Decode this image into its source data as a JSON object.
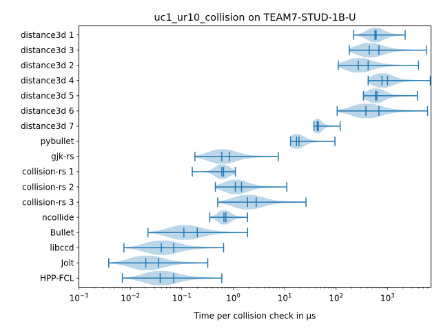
{
  "chart_data": {
    "type": "violin",
    "title": "uc1_ur10_collision on TEAM7-STUD-1B-U",
    "xlabel": "Time per collision check in µs",
    "ylabel": "",
    "x_scale": "log",
    "xlim": [
      0.001,
      7000
    ],
    "x_ticks": [
      {
        "value": 0.001,
        "base": "10",
        "exp": "−3"
      },
      {
        "value": 0.01,
        "base": "10",
        "exp": "−2"
      },
      {
        "value": 0.1,
        "base": "10",
        "exp": "−1"
      },
      {
        "value": 1,
        "base": "10",
        "exp": "0"
      },
      {
        "value": 10,
        "base": "10",
        "exp": "1"
      },
      {
        "value": 100,
        "base": "10",
        "exp": "2"
      },
      {
        "value": 1000,
        "base": "10",
        "exp": "3"
      }
    ],
    "grid": false,
    "colors": {
      "line": "#1f77b4",
      "body": "#1f77b4",
      "body_opacity": 0.3
    },
    "series": [
      {
        "name": "distance3d 1",
        "min": 220,
        "max": 2200,
        "mean": 600,
        "median": 570
      },
      {
        "name": "distance3d 3",
        "min": 180,
        "max": 5700,
        "mean": 680,
        "median": 440
      },
      {
        "name": "distance3d 2",
        "min": 110,
        "max": 4000,
        "mean": 420,
        "median": 270
      },
      {
        "name": "distance3d 4",
        "min": 420,
        "max": 6800,
        "mean": 1000,
        "median": 780
      },
      {
        "name": "distance3d 5",
        "min": 340,
        "max": 3800,
        "mean": 620,
        "median": 580
      },
      {
        "name": "distance3d 6",
        "min": 105,
        "max": 6000,
        "mean": 680,
        "median": 380
      },
      {
        "name": "distance3d 7",
        "min": 37,
        "max": 120,
        "mean": 45,
        "median": 43
      },
      {
        "name": "pybullet",
        "min": 13,
        "max": 95,
        "mean": 19,
        "median": 17
      },
      {
        "name": "gjk-rs",
        "min": 0.18,
        "max": 7.5,
        "mean": 0.85,
        "median": 0.6
      },
      {
        "name": "collision-rs 1",
        "min": 0.16,
        "max": 1.1,
        "mean": 0.65,
        "median": 0.6
      },
      {
        "name": "collision-rs 2",
        "min": 0.45,
        "max": 11,
        "mean": 1.45,
        "median": 1.1
      },
      {
        "name": "collision-rs 3",
        "min": 0.5,
        "max": 26,
        "mean": 2.8,
        "median": 1.9
      },
      {
        "name": "ncollide",
        "min": 0.35,
        "max": 1.9,
        "mean": 0.72,
        "median": 0.66
      },
      {
        "name": "Bullet",
        "min": 0.022,
        "max": 1.9,
        "mean": 0.2,
        "median": 0.11
      },
      {
        "name": "libccd",
        "min": 0.0075,
        "max": 0.65,
        "mean": 0.07,
        "median": 0.04
      },
      {
        "name": "Jolt",
        "min": 0.0038,
        "max": 0.32,
        "mean": 0.035,
        "median": 0.02
      },
      {
        "name": "HPP-FCL",
        "min": 0.007,
        "max": 0.6,
        "mean": 0.07,
        "median": 0.038
      }
    ]
  }
}
